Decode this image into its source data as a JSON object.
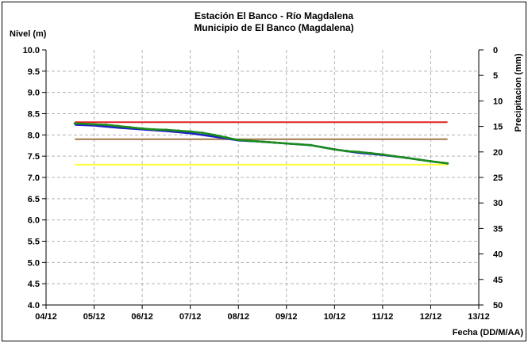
{
  "chart_data": {
    "type": "line",
    "title": "Estación El Banco - Río Magdalena",
    "subtitle": "Municipio de El Banco (Magdalena)",
    "ylabel": "Nivel (m)",
    "y2label": "Precipitacion (mm)",
    "xlabel": "Fecha (DD/M/AA)",
    "ylim": [
      4.0,
      10.0
    ],
    "y2lim": [
      0,
      50
    ],
    "y2_inverted": true,
    "x_ticks": [
      "04/12",
      "05/12",
      "06/12",
      "07/12",
      "08/12",
      "09/12",
      "10/12",
      "11/12",
      "12/12",
      "13/12"
    ],
    "y_ticks": [
      "10.0",
      "9.5",
      "9.0",
      "8.5",
      "8.0",
      "7.5",
      "7.0",
      "6.5",
      "6.0",
      "5.5",
      "5.0",
      "4.5",
      "4.0"
    ],
    "y2_ticks": [
      "0",
      "5",
      "10",
      "15",
      "20",
      "25",
      "30",
      "35",
      "40",
      "45",
      "50"
    ],
    "grid": true,
    "series": [
      {
        "color": "#1f1fc8",
        "x": [
          4.6,
          5.0,
          5.5,
          6.0,
          6.5,
          7.0,
          7.5,
          8.0,
          8.5,
          9.0,
          9.5,
          10.0,
          10.5,
          11.0,
          11.5,
          12.0,
          12.35
        ],
        "values": [
          8.24,
          8.22,
          8.17,
          8.13,
          8.09,
          8.04,
          7.96,
          7.87,
          7.84,
          7.8,
          7.76,
          7.66,
          7.58,
          7.53,
          7.46,
          7.38,
          7.33
        ]
      },
      {
        "color": "#1a8c1a",
        "markers": true,
        "x": [
          4.6,
          5.0,
          5.25,
          5.5,
          5.75,
          6.0,
          6.25,
          6.5,
          6.75,
          7.0,
          7.25,
          7.5,
          7.75,
          8.0,
          8.25,
          8.5,
          8.75,
          9.0,
          9.25,
          9.5,
          9.75,
          10.0,
          10.25,
          10.5,
          10.75,
          11.0,
          11.25,
          11.5,
          11.75,
          12.0,
          12.35
        ],
        "values": [
          8.27,
          8.25,
          8.24,
          8.21,
          8.18,
          8.15,
          8.13,
          8.12,
          8.1,
          8.08,
          8.05,
          8.0,
          7.94,
          7.88,
          7.86,
          7.84,
          7.82,
          7.8,
          7.78,
          7.76,
          7.71,
          7.66,
          7.62,
          7.6,
          7.57,
          7.54,
          7.5,
          7.46,
          7.42,
          7.38,
          7.33
        ]
      }
    ],
    "thresholds": [
      {
        "value": 8.3,
        "color": "#e02020",
        "x": [
          4.6,
          12.35
        ]
      },
      {
        "value": 7.9,
        "color": "#a0784a",
        "x": [
          4.6,
          12.35
        ]
      },
      {
        "value": 7.3,
        "color": "#ffff33",
        "x": [
          4.6,
          12.35
        ]
      }
    ]
  }
}
